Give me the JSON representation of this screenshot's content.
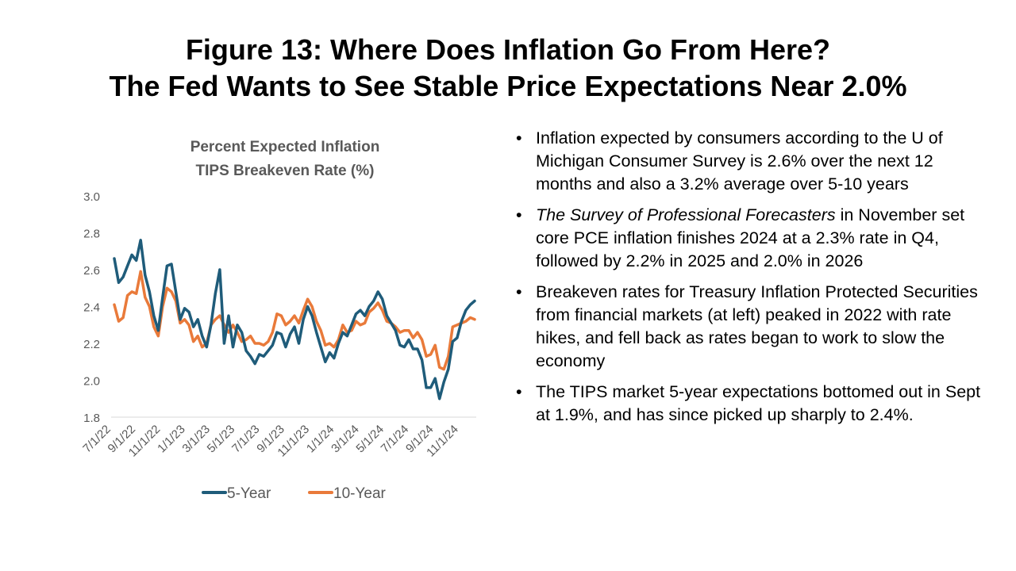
{
  "title": {
    "line1": "Figure 13: Where Does Inflation Go From Here?",
    "line2": "The Fed Wants to See Stable Price Expectations Near 2.0%"
  },
  "bullets": {
    "b1": "Inflation expected by consumers according to the U of Michigan Consumer Survey is 2.6% over the next 12 months and also a 3.2% average over 5-10 years",
    "b2_italic": "The Survey of Professional Forecasters",
    "b2_rest": " in November set core PCE inflation finishes 2024 at a 2.3% rate in Q4, followed by 2.2% in 2025 and 2.0% in 2026",
    "b3": "Breakeven rates for Treasury Inflation Protected Securities from financial markets (at left) peaked in 2022 with rate hikes, and fell back as rates began to work to slow the economy",
    "b4": "The TIPS market 5-year expectations bottomed out in Sept at 1.9%, and has since picked up sharply to 2.4%."
  },
  "colors": {
    "five_year": "#1f5c7a",
    "ten_year": "#e97a3a",
    "axis_text": "#595959",
    "axis_line": "#d9d9d9"
  },
  "chart_data": {
    "type": "line",
    "title": "Percent Expected Inflation",
    "subtitle": "TIPS Breakeven Rate (%)",
    "xlabel": "",
    "ylabel": "",
    "ylim": [
      1.8,
      3.0
    ],
    "yticks": [
      "1.8",
      "2.0",
      "2.2",
      "2.4",
      "2.6",
      "2.8",
      "3.0"
    ],
    "x_tick_labels": [
      "7/1/22",
      "9/1/22",
      "11/1/22",
      "1/1/23",
      "3/1/23",
      "5/1/23",
      "7/1/23",
      "9/1/23",
      "11/1/23",
      "1/1/24",
      "3/1/24",
      "5/1/24",
      "7/1/24",
      "9/1/24",
      "11/1/24"
    ],
    "legend_position": "bottom",
    "series": [
      {
        "name": "5-Year",
        "values": [
          2.66,
          2.53,
          2.56,
          2.62,
          2.68,
          2.65,
          2.76,
          2.57,
          2.48,
          2.35,
          2.27,
          2.45,
          2.62,
          2.63,
          2.48,
          2.33,
          2.39,
          2.37,
          2.29,
          2.33,
          2.24,
          2.18,
          2.3,
          2.47,
          2.6,
          2.2,
          2.35,
          2.18,
          2.3,
          2.26,
          2.16,
          2.13,
          2.09,
          2.14,
          2.13,
          2.16,
          2.19,
          2.26,
          2.25,
          2.18,
          2.25,
          2.29,
          2.2,
          2.33,
          2.4,
          2.35,
          2.26,
          2.18,
          2.1,
          2.15,
          2.12,
          2.2,
          2.26,
          2.24,
          2.3,
          2.36,
          2.38,
          2.35,
          2.4,
          2.43,
          2.48,
          2.44,
          2.35,
          2.31,
          2.27,
          2.19,
          2.18,
          2.22,
          2.17,
          2.17,
          2.11,
          1.96,
          1.96,
          2.01,
          1.9,
          1.99,
          2.06,
          2.21,
          2.23,
          2.32,
          2.38,
          2.41,
          2.43
        ]
      },
      {
        "name": "10-Year",
        "values": [
          2.41,
          2.32,
          2.34,
          2.46,
          2.48,
          2.47,
          2.59,
          2.45,
          2.4,
          2.29,
          2.24,
          2.4,
          2.5,
          2.48,
          2.43,
          2.31,
          2.33,
          2.3,
          2.21,
          2.24,
          2.18,
          2.2,
          2.3,
          2.33,
          2.35,
          2.3,
          2.26,
          2.3,
          2.26,
          2.21,
          2.22,
          2.24,
          2.2,
          2.2,
          2.19,
          2.21,
          2.26,
          2.36,
          2.35,
          2.3,
          2.32,
          2.35,
          2.31,
          2.38,
          2.44,
          2.4,
          2.32,
          2.27,
          2.19,
          2.2,
          2.18,
          2.22,
          2.3,
          2.26,
          2.27,
          2.32,
          2.3,
          2.31,
          2.37,
          2.39,
          2.42,
          2.38,
          2.32,
          2.31,
          2.29,
          2.26,
          2.27,
          2.27,
          2.23,
          2.26,
          2.22,
          2.13,
          2.14,
          2.19,
          2.07,
          2.06,
          2.13,
          2.29,
          2.3,
          2.31,
          2.32,
          2.34,
          2.33
        ]
      }
    ]
  }
}
